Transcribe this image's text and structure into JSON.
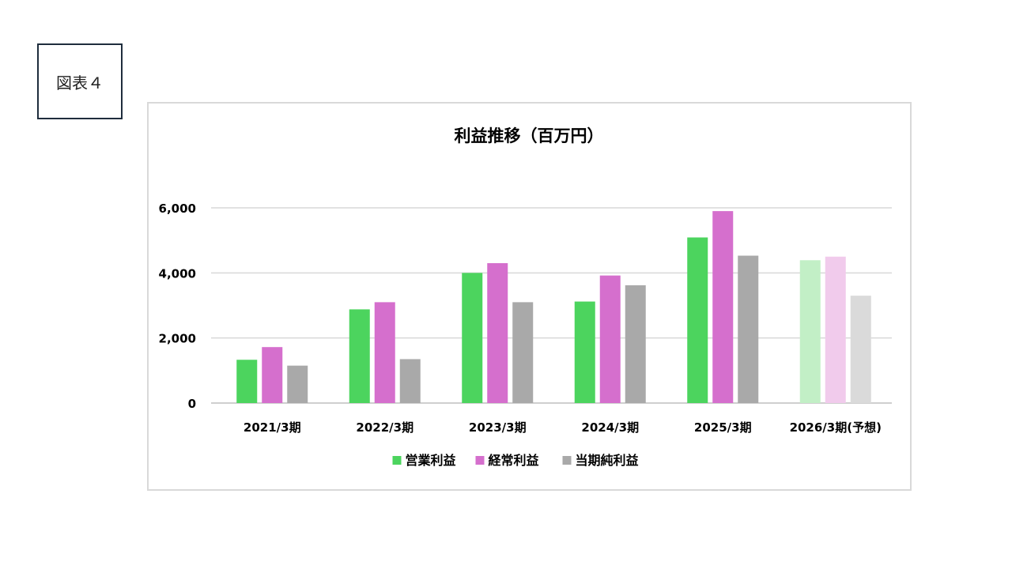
{
  "figure_label": "図表４",
  "chart_data": {
    "type": "bar",
    "title": "利益推移（百万円）",
    "xlabel": "",
    "ylabel": "",
    "ylim": [
      0,
      6000
    ],
    "yticks": [
      0,
      2000,
      4000,
      6000
    ],
    "ytick_labels": [
      "0",
      "2,000",
      "4,000",
      "6,000"
    ],
    "grid": true,
    "legend_position": "bottom",
    "categories": [
      "2021/3期",
      "2022/3期",
      "2023/3期",
      "2024/3期",
      "2025/3期",
      "2026/3期(予想)"
    ],
    "forecast_category_index": 5,
    "series": [
      {
        "name": "営業利益",
        "color": "#4cd45e",
        "forecast_color": "#c2efc6",
        "values": [
          1330,
          2880,
          4000,
          3120,
          5090,
          4390
        ]
      },
      {
        "name": "経常利益",
        "color": "#d56fcd",
        "forecast_color": "#f1cbec",
        "values": [
          1720,
          3100,
          4300,
          3920,
          5900,
          4500
        ]
      },
      {
        "name": "当期純利益",
        "color": "#a9a9a9",
        "forecast_color": "#dadada",
        "values": [
          1150,
          1350,
          3100,
          3620,
          4530,
          3300
        ]
      }
    ]
  }
}
